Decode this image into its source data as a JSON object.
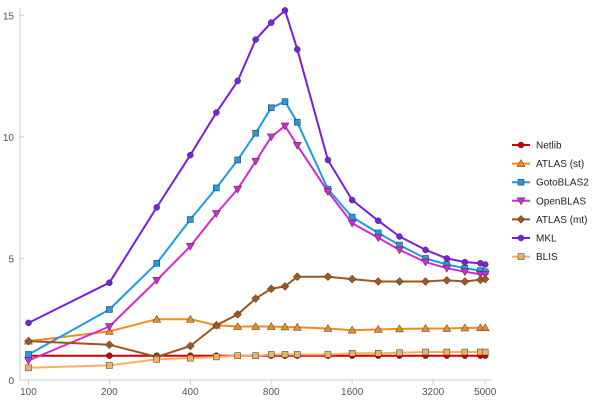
{
  "chart_data": {
    "type": "line",
    "xscale": "log",
    "x": [
      100,
      200,
      300,
      400,
      500,
      600,
      700,
      800,
      900,
      1000,
      1300,
      1600,
      2000,
      2400,
      3000,
      3600,
      4200,
      4800,
      5000
    ],
    "xticks": [
      100,
      200,
      400,
      800,
      1600,
      3200,
      5000
    ],
    "yticks": [
      0,
      5,
      10,
      15
    ],
    "ylim": [
      0,
      15.3
    ],
    "xlim": [
      93,
      5300
    ],
    "grid": false,
    "legend_position": "right",
    "series": [
      {
        "name": "Netlib",
        "color": "#cc0000",
        "marker": "circle",
        "values": [
          1.0,
          1.0,
          1.0,
          1.0,
          1.0,
          1.0,
          1.0,
          1.0,
          1.0,
          1.0,
          1.0,
          1.0,
          1.0,
          1.0,
          1.0,
          1.0,
          1.0,
          1.0,
          1.0
        ]
      },
      {
        "name": "ATLAS (st)",
        "color": "#f08c1e",
        "marker": "triangle-up",
        "values": [
          1.6,
          2.0,
          2.5,
          2.5,
          2.25,
          2.2,
          2.2,
          2.2,
          2.18,
          2.17,
          2.12,
          2.05,
          2.08,
          2.1,
          2.12,
          2.12,
          2.14,
          2.15,
          2.15
        ]
      },
      {
        "name": "GotoBLAS2",
        "color": "#1e9be1",
        "marker": "square",
        "values": [
          1.05,
          2.9,
          4.8,
          6.6,
          7.9,
          9.05,
          10.15,
          11.2,
          11.45,
          10.6,
          7.85,
          6.7,
          6.05,
          5.55,
          5.0,
          4.75,
          4.6,
          4.5,
          4.45
        ]
      },
      {
        "name": "OpenBLAS",
        "color": "#d22ad2",
        "marker": "triangle-down",
        "values": [
          0.8,
          2.2,
          4.1,
          5.5,
          6.85,
          7.85,
          9.0,
          10.0,
          10.45,
          9.65,
          7.75,
          6.45,
          5.85,
          5.35,
          4.85,
          4.6,
          4.45,
          4.35,
          4.35
        ]
      },
      {
        "name": "ATLAS (mt)",
        "color": "#a0561e",
        "marker": "diamond",
        "values": [
          1.6,
          1.45,
          0.95,
          1.4,
          2.25,
          2.7,
          3.35,
          3.75,
          3.85,
          4.25,
          4.25,
          4.15,
          4.05,
          4.05,
          4.05,
          4.1,
          4.05,
          4.12,
          4.15
        ]
      },
      {
        "name": "MKL",
        "color": "#7a1ee1",
        "marker": "circle",
        "values": [
          2.35,
          4.0,
          7.1,
          9.25,
          11.0,
          12.3,
          14.0,
          14.7,
          15.2,
          13.6,
          9.05,
          7.4,
          6.55,
          5.9,
          5.35,
          5.0,
          4.85,
          4.8,
          4.75
        ]
      },
      {
        "name": "BLIS",
        "color": "#f5b064",
        "marker": "square",
        "values": [
          0.5,
          0.6,
          0.85,
          0.9,
          0.95,
          1.0,
          1.0,
          1.05,
          1.05,
          1.05,
          1.05,
          1.1,
          1.1,
          1.12,
          1.15,
          1.15,
          1.15,
          1.15,
          1.15
        ]
      }
    ]
  }
}
